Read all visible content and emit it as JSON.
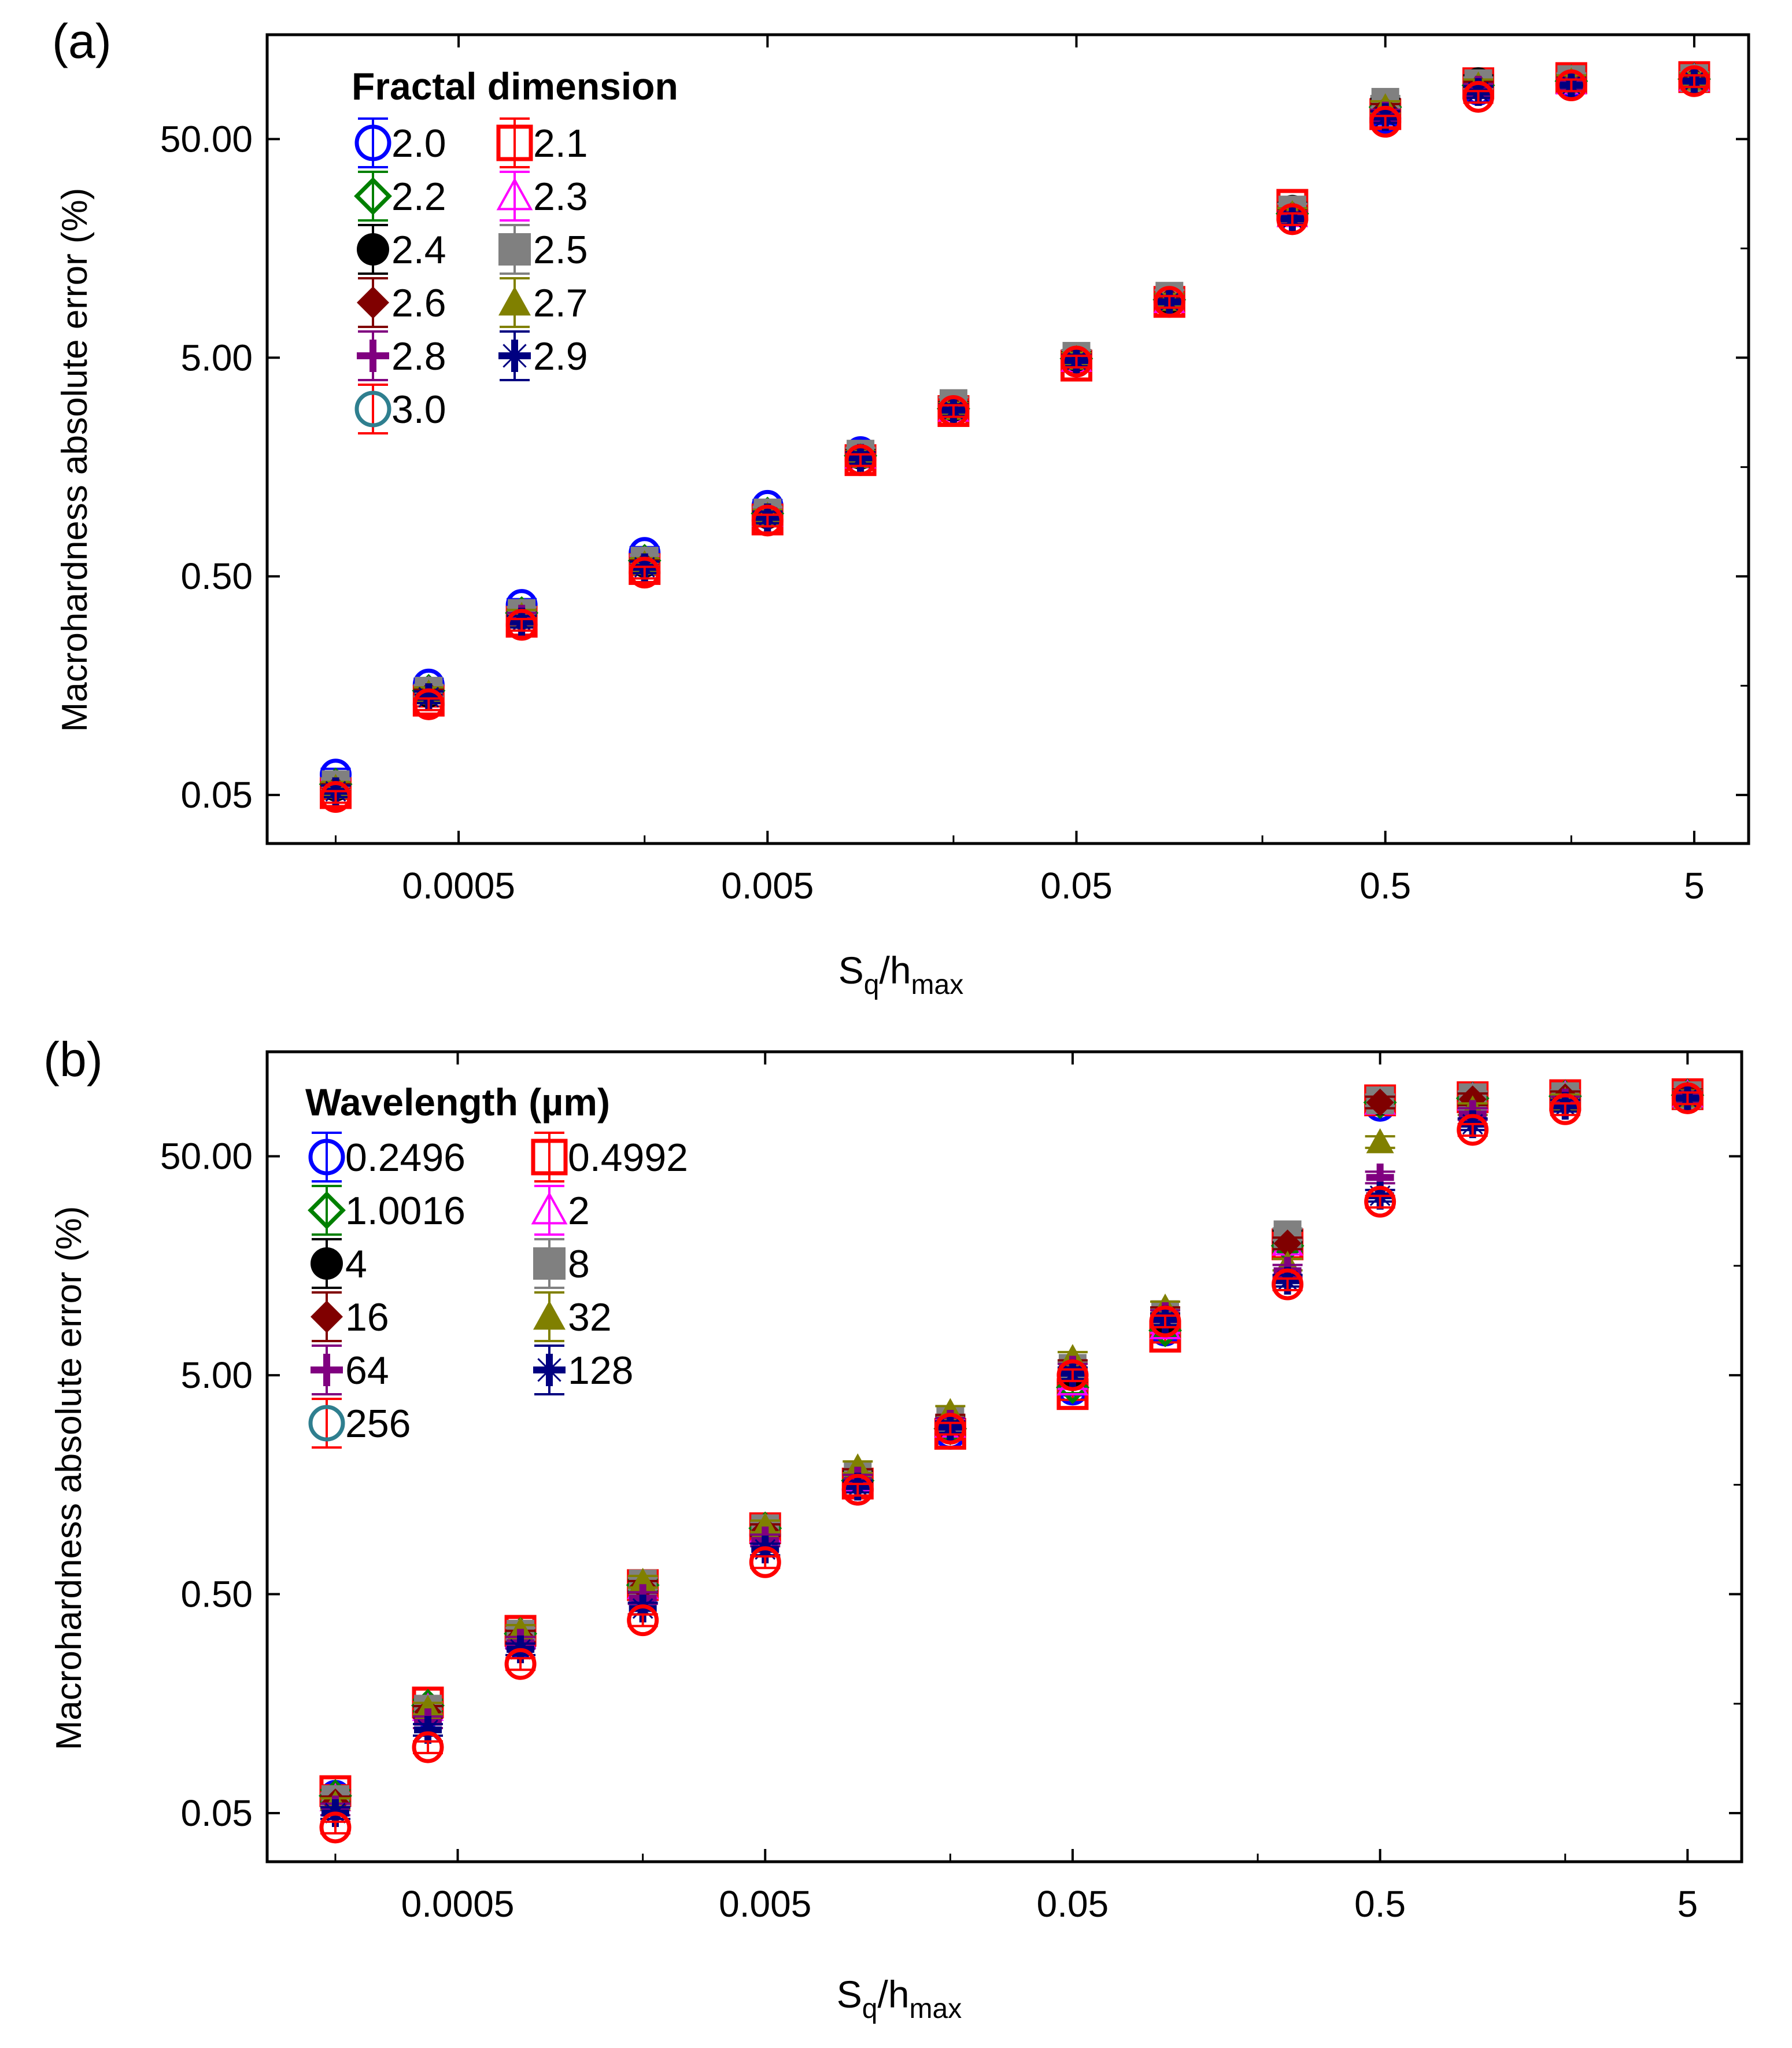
{
  "chart_data": [
    {
      "type": "scatter",
      "panel_label": "(a)",
      "xscale": "log",
      "yscale": "log",
      "xlim": [
        0.00012,
        7.5
      ],
      "ylim": [
        0.03,
        150
      ],
      "xticks": [
        0.0005,
        0.005,
        0.05,
        0.5,
        5
      ],
      "xtick_labels": [
        "0.0005",
        "0.005",
        "0.05",
        "0.5",
        "5"
      ],
      "yticks": [
        0.05,
        0.5,
        5,
        50
      ],
      "ytick_labels": [
        "0.05",
        "0.50",
        "5.00",
        "50.00"
      ],
      "xlabel": {
        "main": "S",
        "sub1": "q",
        "mid": "/h",
        "sub2": "max"
      },
      "ylabel": "Macrohardness absolute error (%)",
      "legend_title": "Fractal dimension",
      "legend_position": "top-left",
      "x": [
        0.0002,
        0.0004,
        0.0008,
        0.002,
        0.005,
        0.01,
        0.02,
        0.05,
        0.1,
        0.25,
        0.5,
        1,
        2,
        5
      ],
      "series": [
        {
          "name": "2.0",
          "marker": "circle-open",
          "color": "#0000ff",
          "values": [
            0.062,
            0.16,
            0.37,
            0.64,
            1.05,
            1.85,
            3.0,
            4.8,
            9.3,
            23.4,
            62,
            84,
            90,
            94
          ]
        },
        {
          "name": "2.1",
          "marker": "square-open",
          "color": "#ff0000",
          "values": [
            0.051,
            0.135,
            0.31,
            0.54,
            0.91,
            1.7,
            2.85,
            4.6,
            9.0,
            25,
            65,
            90,
            95,
            96
          ]
        },
        {
          "name": "2.2",
          "marker": "diamond-open",
          "color": "#008000",
          "values": [
            0.056,
            0.15,
            0.34,
            0.59,
            0.97,
            1.78,
            2.92,
            4.95,
            9.2,
            22.8,
            70,
            88,
            92,
            94
          ]
        },
        {
          "name": "2.3",
          "marker": "triangle-open",
          "color": "#ff00ff",
          "values": [
            0.055,
            0.148,
            0.33,
            0.58,
            0.96,
            1.77,
            2.9,
            4.9,
            9.1,
            22.5,
            68,
            87,
            91,
            94
          ]
        },
        {
          "name": "2.4",
          "marker": "circle-filled",
          "color": "#000000",
          "values": [
            0.054,
            0.145,
            0.33,
            0.57,
            0.95,
            1.78,
            2.95,
            5.0,
            9.2,
            24,
            72,
            92,
            93,
            94
          ]
        },
        {
          "name": "2.5",
          "marker": "square-filled",
          "color": "#808080",
          "values": [
            0.056,
            0.15,
            0.34,
            0.59,
            0.98,
            1.82,
            3.1,
            5.1,
            9.6,
            23.8,
            74,
            90,
            94,
            95
          ]
        },
        {
          "name": "2.6",
          "marker": "diamond-filled",
          "color": "#800000",
          "values": [
            0.053,
            0.143,
            0.32,
            0.56,
            0.94,
            1.75,
            2.9,
            4.9,
            9.1,
            22.5,
            68,
            86,
            91,
            93
          ]
        },
        {
          "name": "2.7",
          "marker": "triangle-filled",
          "color": "#808000",
          "values": [
            0.054,
            0.146,
            0.33,
            0.57,
            0.95,
            1.76,
            2.92,
            4.95,
            9.2,
            22.7,
            70,
            88,
            92,
            94
          ]
        },
        {
          "name": "2.8",
          "marker": "plus",
          "color": "#800080",
          "values": [
            0.052,
            0.14,
            0.32,
            0.55,
            0.93,
            1.74,
            2.88,
            4.85,
            9.0,
            21.8,
            64,
            84,
            89,
            92
          ]
        },
        {
          "name": "2.9",
          "marker": "cross-star",
          "color": "#000080",
          "values": [
            0.052,
            0.14,
            0.31,
            0.55,
            0.93,
            1.74,
            2.88,
            4.85,
            9.0,
            21.6,
            63,
            82,
            88,
            92
          ]
        },
        {
          "name": "3.0",
          "marker": "circle-open",
          "color": "#ff0000",
          "bar_color": "#ff0000",
          "face_color": "#2f7f8f",
          "values": [
            0.049,
            0.13,
            0.3,
            0.52,
            0.9,
            1.7,
            2.85,
            4.8,
            9.0,
            21.5,
            60,
            78,
            88,
            92
          ]
        }
      ]
    },
    {
      "type": "scatter",
      "panel_label": "(b)",
      "xscale": "log",
      "yscale": "log",
      "xlim": [
        0.00012,
        7.5
      ],
      "ylim": [
        0.03,
        150
      ],
      "xticks": [
        0.0005,
        0.005,
        0.05,
        0.5,
        5
      ],
      "xtick_labels": [
        "0.0005",
        "0.005",
        "0.05",
        "0.5",
        "5"
      ],
      "yticks": [
        0.05,
        0.5,
        5,
        50
      ],
      "ytick_labels": [
        "0.05",
        "0.50",
        "5.00",
        "50.00"
      ],
      "xlabel": {
        "main": "S",
        "sub1": "q",
        "mid": "/h",
        "sub2": "max"
      },
      "ylabel": "Macrohardness absolute error (%)",
      "legend_title": "Wavelength (µm)",
      "legend_position": "top-left",
      "x": [
        0.0002,
        0.0004,
        0.0008,
        0.002,
        0.005,
        0.01,
        0.02,
        0.05,
        0.1,
        0.25,
        0.5,
        1,
        2,
        5
      ],
      "series": [
        {
          "name": "0.2496",
          "marker": "circle-open",
          "color": "#0000ff",
          "values": [
            0.06,
            0.145,
            0.3,
            0.52,
            0.93,
            1.5,
            2.7,
            4.3,
            8.0,
            20.5,
            85,
            90,
            94,
            96
          ]
        },
        {
          "name": "0.4992",
          "marker": "square-open",
          "color": "#ff0000",
          "values": [
            0.063,
            0.16,
            0.34,
            0.55,
            1.0,
            1.6,
            2.7,
            4.1,
            7.5,
            19.8,
            90,
            93,
            95,
            96
          ]
        },
        {
          "name": "1.0016",
          "marker": "diamond-open",
          "color": "#008000",
          "values": [
            0.06,
            0.155,
            0.33,
            0.55,
            1.0,
            1.65,
            2.85,
            4.4,
            8.0,
            19.5,
            88,
            92,
            94,
            95
          ]
        },
        {
          "name": "2",
          "marker": "triangle-open",
          "color": "#ff00ff",
          "values": [
            0.058,
            0.15,
            0.32,
            0.54,
            0.98,
            1.68,
            2.95,
            4.6,
            8.3,
            20,
            88,
            92,
            94,
            95
          ]
        },
        {
          "name": "4",
          "marker": "circle-filled",
          "color": "#000000",
          "values": [
            0.058,
            0.15,
            0.32,
            0.54,
            0.98,
            1.72,
            3.05,
            5.0,
            8.8,
            21.5,
            89,
            92,
            94,
            95
          ]
        },
        {
          "name": "8",
          "marker": "square-filled",
          "color": "#808080",
          "values": [
            0.058,
            0.15,
            0.33,
            0.56,
            1.0,
            1.75,
            3.1,
            5.4,
            9.5,
            22,
            90,
            93,
            94,
            95
          ]
        },
        {
          "name": "16",
          "marker": "diamond-filled",
          "color": "#800000",
          "values": [
            0.056,
            0.145,
            0.32,
            0.54,
            0.98,
            1.75,
            3.1,
            5.5,
            9.6,
            20,
            88,
            91,
            93,
            95
          ]
        },
        {
          "name": "32",
          "marker": "triangle-filled",
          "color": "#808000",
          "values": [
            0.055,
            0.15,
            0.34,
            0.57,
            1.02,
            1.9,
            3.4,
            6.0,
            10.2,
            16,
            58,
            82,
            90,
            94
          ]
        },
        {
          "name": "64",
          "marker": "plus",
          "color": "#800080",
          "values": [
            0.052,
            0.13,
            0.3,
            0.48,
            0.88,
            1.65,
            3.0,
            5.3,
            9.3,
            15,
            40,
            78,
            88,
            93
          ]
        },
        {
          "name": "128",
          "marker": "cross-star",
          "color": "#000080",
          "values": [
            0.05,
            0.12,
            0.28,
            0.43,
            0.8,
            1.55,
            2.9,
            5.1,
            9.0,
            13.5,
            33,
            70,
            85,
            92
          ]
        },
        {
          "name": "256",
          "marker": "circle-open",
          "color": "#ff0000",
          "bar_color": "#ff0000",
          "face_color": "#2f7f8f",
          "values": [
            0.043,
            0.1,
            0.24,
            0.38,
            0.7,
            1.5,
            2.85,
            5.0,
            8.8,
            13,
            31,
            66,
            82,
            92
          ]
        }
      ]
    }
  ]
}
